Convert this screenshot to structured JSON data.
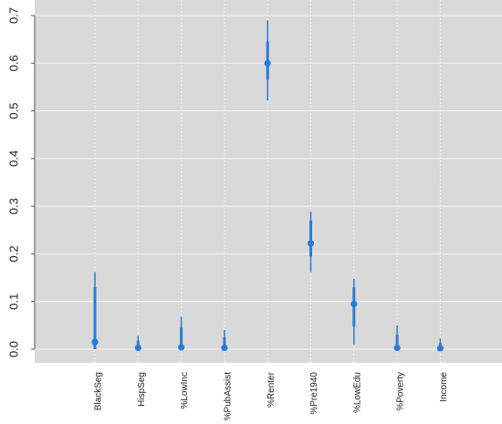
{
  "chart_data": {
    "type": "scatter",
    "title": "",
    "xlabel": "",
    "ylabel": "",
    "categories": [
      "BlackSeg",
      "HispSeg",
      "%LowInc",
      "%PubAssist",
      "%Renter",
      "%Pre1940",
      "%LowEdu",
      "%Poverty",
      "Income"
    ],
    "ylim": [
      -0.025,
      0.72
    ],
    "y_ticks": [
      "0.0",
      "0.1",
      "0.2",
      "0.3",
      "0.4",
      "0.5",
      "0.6",
      "0.7"
    ],
    "grid": true,
    "points": [
      {
        "category": "BlackSeg",
        "estimate": 0.015,
        "inner": [
          0.0,
          0.13
        ],
        "outer": [
          0.0,
          0.162
        ]
      },
      {
        "category": "HispSeg",
        "estimate": 0.003,
        "inner": [
          0.0,
          0.018
        ],
        "outer": [
          0.0,
          0.028
        ]
      },
      {
        "category": "%LowInc",
        "estimate": 0.004,
        "inner": [
          0.0,
          0.045
        ],
        "outer": [
          0.0,
          0.068
        ]
      },
      {
        "category": "%PubAssist",
        "estimate": 0.003,
        "inner": [
          0.0,
          0.025
        ],
        "outer": [
          0.0,
          0.04
        ]
      },
      {
        "category": "%Renter",
        "estimate": 0.6,
        "inner": [
          0.565,
          0.645
        ],
        "outer": [
          0.522,
          0.69
        ]
      },
      {
        "category": "%Pre1940",
        "estimate": 0.222,
        "inner": [
          0.195,
          0.27
        ],
        "outer": [
          0.162,
          0.288
        ]
      },
      {
        "category": "%LowEdu",
        "estimate": 0.095,
        "inner": [
          0.048,
          0.13
        ],
        "outer": [
          0.01,
          0.148
        ]
      },
      {
        "category": "%Poverty",
        "estimate": 0.003,
        "inner": [
          0.0,
          0.03
        ],
        "outer": [
          0.0,
          0.05
        ]
      },
      {
        "category": "Income",
        "estimate": 0.002,
        "inner": [
          0.0,
          0.013
        ],
        "outer": [
          0.0,
          0.022
        ]
      }
    ],
    "colors": {
      "panel": "#d9d9d9",
      "grid": "#f2f2f2",
      "marker": "#2b7bd6",
      "axis": "#555555"
    }
  }
}
